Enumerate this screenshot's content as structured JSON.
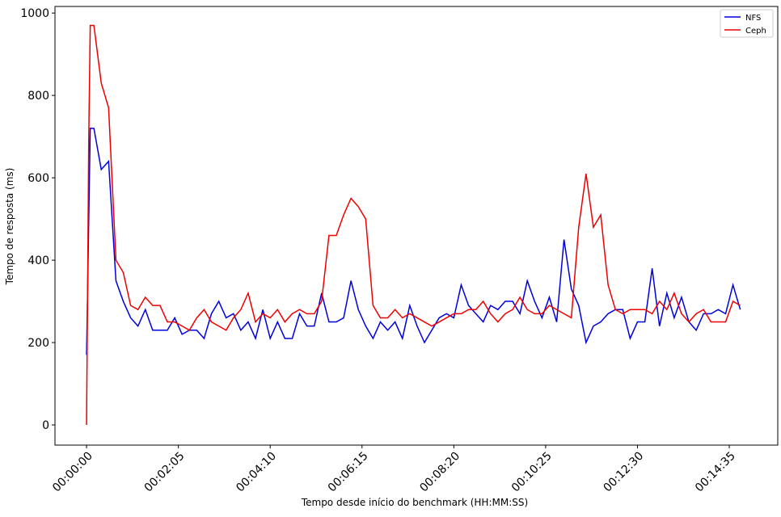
{
  "chart_data": {
    "type": "line",
    "xlabel": "Tempo desde início do benchmark (HH:MM:SS)",
    "ylabel": "Tempo de resposta (ms)",
    "x": [
      0,
      3,
      5,
      10,
      20,
      30,
      40,
      50,
      60,
      70,
      80,
      90,
      100,
      110,
      120,
      130,
      140,
      150,
      160,
      170,
      180,
      190,
      200,
      210,
      220,
      230,
      240,
      250,
      260,
      270,
      280,
      290,
      300,
      310,
      320,
      330,
      340,
      350,
      360,
      370,
      380,
      390,
      400,
      410,
      420,
      430,
      440,
      450,
      460,
      470,
      480,
      490,
      500,
      510,
      520,
      530,
      540,
      550,
      560,
      570,
      580,
      590,
      600,
      610,
      620,
      630,
      640,
      650,
      660,
      670,
      680,
      690,
      700,
      710,
      720,
      730,
      740,
      750,
      760,
      770,
      780,
      790,
      800,
      810,
      820,
      830,
      840,
      850,
      860,
      870,
      880,
      890
    ],
    "series": [
      {
        "name": "NFS",
        "color": "#0000dd",
        "values": [
          170,
          500,
          720,
          720,
          620,
          640,
          350,
          300,
          260,
          240,
          280,
          230,
          230,
          230,
          260,
          220,
          230,
          230,
          210,
          270,
          300,
          260,
          270,
          230,
          250,
          210,
          280,
          210,
          250,
          210,
          210,
          270,
          240,
          240,
          320,
          250,
          250,
          260,
          350,
          280,
          240,
          210,
          250,
          230,
          250,
          210,
          290,
          240,
          200,
          230,
          260,
          270,
          260,
          340,
          290,
          270,
          250,
          290,
          280,
          300,
          300,
          270,
          350,
          300,
          260,
          310,
          250,
          450,
          330,
          290,
          200,
          240,
          250,
          270,
          280,
          280,
          210,
          250,
          250,
          380,
          240,
          320,
          260,
          310,
          250,
          230,
          270,
          270,
          280,
          270,
          340,
          280
        ]
      },
      {
        "name": "Ceph",
        "color": "#ee0000",
        "values": [
          0,
          700,
          970,
          970,
          830,
          770,
          400,
          370,
          290,
          280,
          310,
          290,
          290,
          250,
          250,
          240,
          230,
          260,
          280,
          250,
          240,
          230,
          260,
          280,
          320,
          250,
          270,
          260,
          280,
          250,
          270,
          280,
          270,
          270,
          300,
          460,
          460,
          510,
          550,
          530,
          500,
          290,
          260,
          260,
          280,
          260,
          270,
          260,
          250,
          240,
          250,
          260,
          270,
          270,
          280,
          280,
          300,
          270,
          250,
          270,
          280,
          310,
          280,
          270,
          270,
          290,
          280,
          270,
          260,
          480,
          610,
          480,
          510,
          340,
          280,
          270,
          280,
          280,
          280,
          270,
          300,
          280,
          320,
          270,
          250,
          270,
          280,
          250,
          250,
          250,
          300,
          290
        ]
      }
    ],
    "xlim": [
      -43,
      941
    ],
    "ylim": [
      -49,
      1016
    ],
    "xticks": [
      {
        "value": 0,
        "label": "00:00:00"
      },
      {
        "value": 125,
        "label": "00:02:05"
      },
      {
        "value": 250,
        "label": "00:04:10"
      },
      {
        "value": 375,
        "label": "00:06:15"
      },
      {
        "value": 500,
        "label": "00:08:20"
      },
      {
        "value": 625,
        "label": "00:10:25"
      },
      {
        "value": 750,
        "label": "00:12:30"
      },
      {
        "value": 875,
        "label": "00:14:35"
      }
    ],
    "yticks": [
      0,
      200,
      400,
      600,
      800,
      1000
    ],
    "legend": "upper right",
    "grid": false
  }
}
